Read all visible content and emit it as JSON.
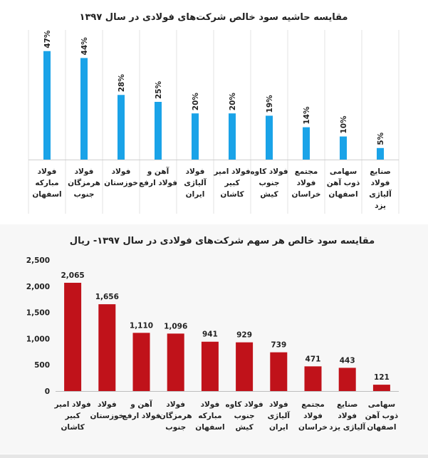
{
  "chart_data": [
    {
      "type": "bar",
      "title": "مقایسه حاشیه سود خالص شرکت‌های فولادی در سال ۱۳۹۷",
      "categories": [
        "فولاد مبارکه اسفهان",
        "فولاد هرمزگان جنوب",
        "فولاد خوزستان",
        "آهن و فولاد ارفع",
        "فولاد آلیاژی ایران",
        "فولاد امیر کبیر کاشان",
        "فولاد کاوه جنوب کیش",
        "مجتمع فولاد خراسان",
        "سهامی ذوب آهن اصفهان",
        "صنایع فولاد آلیاژی یزد"
      ],
      "category_lines": [
        [
          "فولاد",
          "مبارکه",
          "اسفهان"
        ],
        [
          "فولاد",
          "هرمزگان",
          "جنوب"
        ],
        [
          "فولاد",
          "خوزستان"
        ],
        [
          "آهن و",
          "فولاد ارفع"
        ],
        [
          "فولاد",
          "آلیاژی",
          "ایران"
        ],
        [
          "فولاد امیر",
          "کبیر",
          "کاشان"
        ],
        [
          "فولاد کاوه",
          "جنوب",
          "کیش"
        ],
        [
          "مجتمع",
          "فولاد",
          "خراسان"
        ],
        [
          "سهامی",
          "ذوب آهن",
          "اصفهان"
        ],
        [
          "صنایع",
          "فولاد",
          "آلیاژی",
          "یزد"
        ]
      ],
      "values": [
        47,
        44,
        28,
        25,
        20,
        20,
        19,
        14,
        10,
        5
      ],
      "value_labels": [
        "47%",
        "44%",
        "28%",
        "25%",
        "20%",
        "20%",
        "19%",
        "14%",
        "10%",
        "5%"
      ],
      "ylim": [
        0,
        50
      ],
      "grid": "vertical separators",
      "color": "#1aa3e8"
    },
    {
      "type": "bar",
      "title": "مقایسه سود خالص هر سهم شرکت‌های فولادی در سال ۱۳۹۷- ریال",
      "categories": [
        "فولاد امیر کبیر کاشان",
        "فولاد خوزستان",
        "آهن و فولاد ارفع",
        "فولاد هرمزگان جنوب",
        "فولاد مبارکه اسفهان",
        "فولاد کاوه جنوب کیش",
        "فولاد آلیاژی ایران",
        "مجتمع فولاد خراسان",
        "صنایع فولاد آلیاژی یزد",
        "سهامی ذوب آهن اصفهان"
      ],
      "category_lines": [
        [
          "فولاد امیر",
          "کبیر",
          "کاشان"
        ],
        [
          "فولاد",
          "خوزستان"
        ],
        [
          "آهن و",
          "فولاد ارفع"
        ],
        [
          "فولاد",
          "هرمزگان",
          "جنوب"
        ],
        [
          "فولاد",
          "مبارکه",
          "اسفهان"
        ],
        [
          "فولاد کاوه",
          "جنوب",
          "کیش"
        ],
        [
          "فولاد",
          "آلیاژی",
          "ایران"
        ],
        [
          "مجتمع",
          "فولاد",
          "خراسان"
        ],
        [
          "صنایع",
          "فولاد",
          "آلیاژی یزد"
        ],
        [
          "سهامی",
          "ذوب آهن",
          "اصفهان"
        ]
      ],
      "values": [
        2065,
        1656,
        1110,
        1096,
        941,
        929,
        739,
        471,
        443,
        121
      ],
      "value_labels": [
        "2,065",
        "1,656",
        "1,110",
        "1,096",
        "941",
        "929",
        "739",
        "471",
        "443",
        "121"
      ],
      "yticks": [
        "0",
        "500",
        "1,000",
        "1,500",
        "2,000",
        "2,500"
      ],
      "ylim": [
        0,
        2500
      ],
      "grid": "none",
      "color": "#c0121a"
    }
  ]
}
